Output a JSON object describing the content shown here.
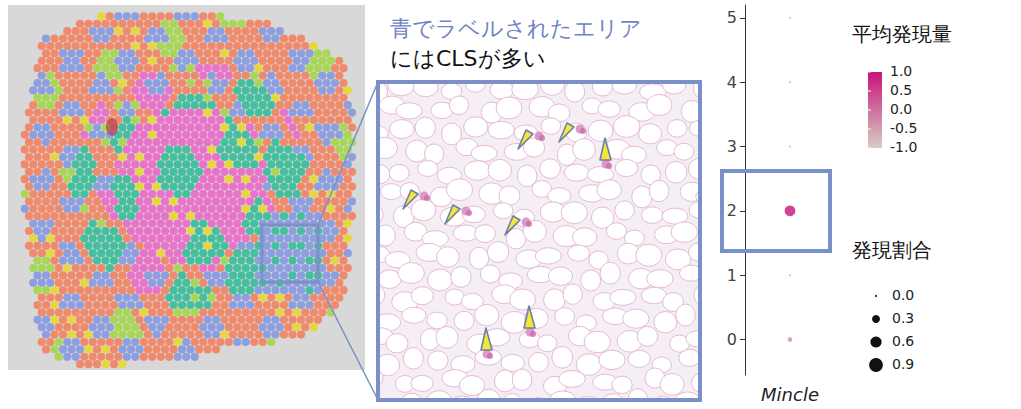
{
  "annotation": {
    "line1": "青でラベルされたエリア",
    "line2": "にはCLSが多い"
  },
  "chart_data": {
    "type": "scatter",
    "categories": [
      "Mincle"
    ],
    "y": [
      0,
      1,
      2,
      3,
      4,
      5
    ],
    "avg_expression": [
      -0.3,
      -0.6,
      1.0,
      -0.7,
      -0.5,
      -0.8
    ],
    "pct_expressed": [
      0.1,
      0.01,
      0.55,
      0.01,
      0.01,
      0.01
    ],
    "ylim": [
      -0.55,
      5.2
    ],
    "yticks": [
      0,
      1,
      2,
      3,
      4,
      5
    ],
    "color_scale": {
      "title": "平均発現量",
      "range": [
        -1.0,
        1.0
      ],
      "ticks": [
        {
          "value": 1.0,
          "label": "1.0"
        },
        {
          "value": 0.5,
          "label": "0.5"
        },
        {
          "value": 0,
          "label": "0.0"
        },
        {
          "value": -0.5,
          "label": "-0.5"
        },
        {
          "value": -1.0,
          "label": "-1.0"
        }
      ],
      "colors": [
        "#d6cdc4",
        "#c8137a"
      ]
    },
    "size_legend": {
      "title": "発現割合",
      "values": [
        {
          "value": 0,
          "label": "0.0"
        },
        {
          "value": 0.3,
          "label": "0.3"
        },
        {
          "value": 0.6,
          "label": "0.6"
        },
        {
          "value": 0.9,
          "label": "0.9"
        }
      ]
    }
  }
}
